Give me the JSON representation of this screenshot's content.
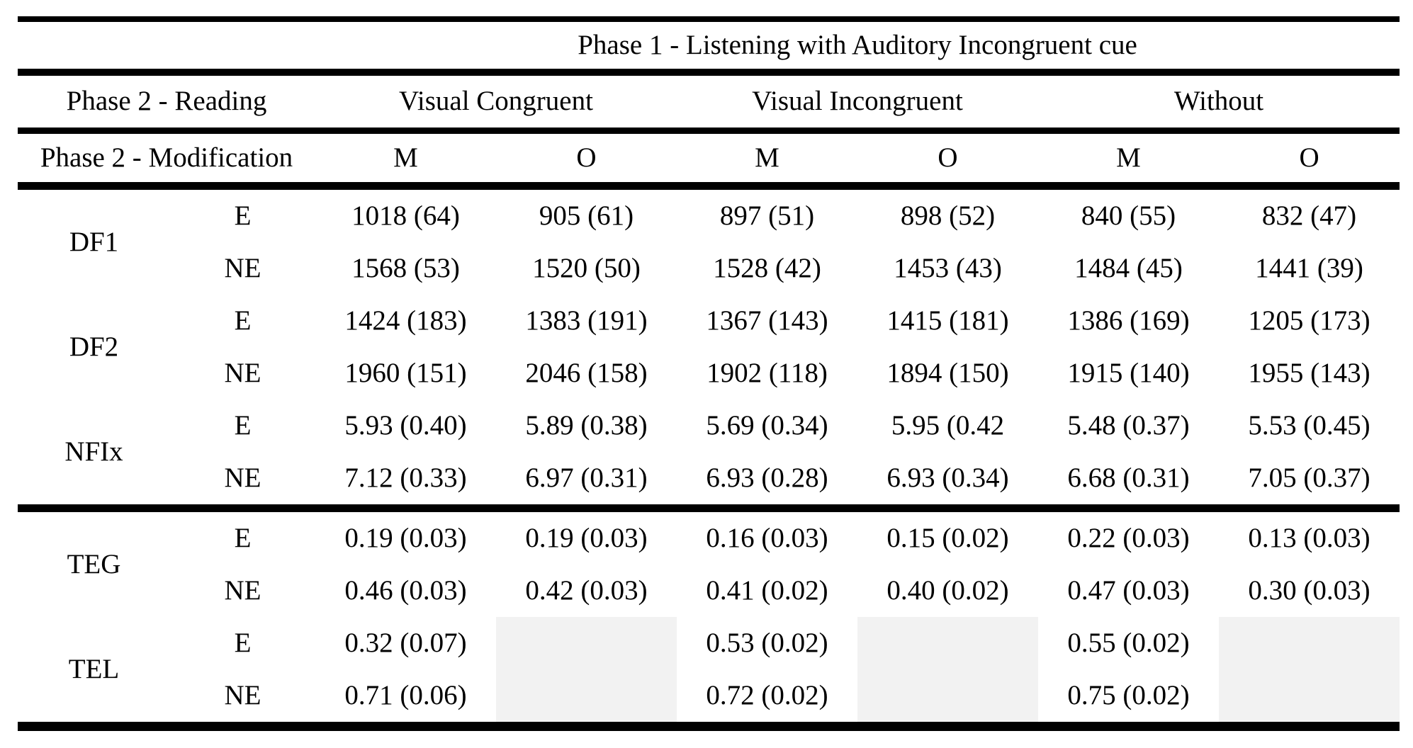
{
  "page": {
    "background_color": "#ffffff",
    "text_color": "#000000",
    "shade_color": "#f2f2f2"
  },
  "table": {
    "phase1_title": "Phase 1 - Listening with Auditory Incongruent cue",
    "header_row1": {
      "left_label": "Phase 2 - Reading",
      "groups": [
        "Visual Congruent",
        "Visual Incongruent",
        "Without"
      ]
    },
    "header_row2": {
      "left_label": "Phase 2 - Modification",
      "subcols": [
        "M",
        "O",
        "M",
        "O",
        "M",
        "O"
      ]
    },
    "groups": [
      {
        "label": "DF1",
        "rows": [
          {
            "condition": "E",
            "values": [
              "1018 (64)",
              "905 (61)",
              "897 (51)",
              "898 (52)",
              "840 (55)",
              "832 (47)"
            ]
          },
          {
            "condition": "NE",
            "values": [
              "1568 (53)",
              "1520 (50)",
              "1528 (42)",
              "1453 (43)",
              "1484 (45)",
              "1441 (39)"
            ]
          }
        ]
      },
      {
        "label": "DF2",
        "rows": [
          {
            "condition": "E",
            "values": [
              "1424 (183)",
              "1383 (191)",
              "1367 (143)",
              "1415 (181)",
              "1386 (169)",
              "1205 (173)"
            ]
          },
          {
            "condition": "NE",
            "values": [
              "1960 (151)",
              "2046 (158)",
              "1902 (118)",
              "1894 (150)",
              "1915 (140)",
              "1955 (143)"
            ]
          }
        ]
      },
      {
        "label": "NFIx",
        "rule_after": true,
        "rows": [
          {
            "condition": "E",
            "values": [
              "5.93 (0.40)",
              "5.89 (0.38)",
              "5.69 (0.34)",
              "5.95 (0.42",
              "5.48 (0.37)",
              "5.53 (0.45)"
            ]
          },
          {
            "condition": "NE",
            "values": [
              "7.12 (0.33)",
              "6.97 (0.31)",
              "6.93 (0.28)",
              "6.93 (0.34)",
              "6.68 (0.31)",
              "7.05 (0.37)"
            ]
          }
        ]
      },
      {
        "label": "TEG",
        "rows": [
          {
            "condition": "E",
            "values": [
              "0.19 (0.03)",
              "0.19 (0.03)",
              "0.16 (0.03)",
              "0.15 (0.02)",
              "0.22 (0.03)",
              "0.13 (0.03)"
            ]
          },
          {
            "condition": "NE",
            "values": [
              "0.46 (0.03)",
              "0.42 (0.03)",
              "0.41 (0.02)",
              "0.40 (0.02)",
              "0.47 (0.03)",
              "0.30 (0.03)"
            ]
          }
        ]
      },
      {
        "label": "TEL",
        "shaded_value_cols": [
          1,
          3,
          5
        ],
        "rows": [
          {
            "condition": "E",
            "values": [
              "0.32 (0.07)",
              "",
              "0.53 (0.02)",
              "",
              "0.55 (0.02)",
              ""
            ]
          },
          {
            "condition": "NE",
            "values": [
              "0.71 (0.06)",
              "",
              "0.72 (0.02)",
              "",
              "0.75 (0.02)",
              ""
            ]
          }
        ]
      }
    ]
  }
}
